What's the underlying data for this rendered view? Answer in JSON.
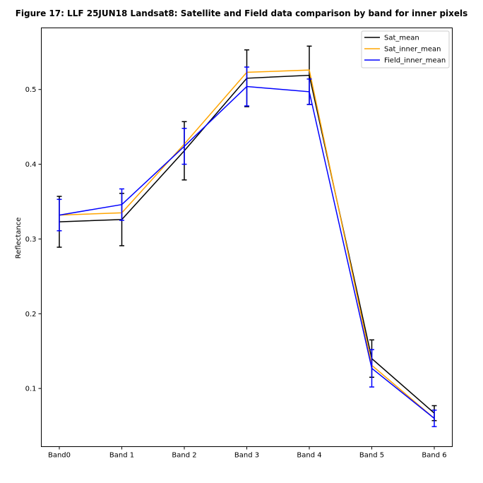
{
  "chart_data": {
    "type": "line",
    "title": "Figure 17: LLF 25JUN18  Landsat8: Satellite and Field data comparison by band for inner pixels",
    "xlabel": "",
    "ylabel": "Reflectance",
    "categories": [
      "Band0",
      "Band 1",
      "Band 2",
      "Band 3",
      "Band 4",
      "Band 5",
      "Band 6"
    ],
    "yticks": [
      "0.1",
      "0.2",
      "0.3",
      "0.4",
      "0.5"
    ],
    "ylim": [
      0.0222,
      0.5824
    ],
    "grid": false,
    "legend_position": "top-right",
    "series": [
      {
        "name": "Sat_mean",
        "color": "#000000",
        "values": [
          0.323,
          0.326,
          0.418,
          0.515,
          0.519,
          0.14,
          0.067
        ],
        "errors": [
          0.034,
          0.035,
          0.039,
          0.038,
          0.039,
          0.025,
          0.01
        ]
      },
      {
        "name": "Sat_inner_mean",
        "color": "#FFA500",
        "values": [
          0.332,
          0.335,
          0.427,
          0.523,
          0.526,
          0.131,
          0.06
        ],
        "errors": [
          0.0,
          0.0,
          0.0,
          0.0,
          0.0,
          0.0,
          0.0
        ]
      },
      {
        "name": "Field_inner_mean",
        "color": "#0000FF",
        "values": [
          0.332,
          0.346,
          0.424,
          0.504,
          0.497,
          0.127,
          0.06
        ],
        "errors": [
          0.021,
          0.021,
          0.024,
          0.026,
          0.017,
          0.025,
          0.011
        ]
      }
    ]
  }
}
